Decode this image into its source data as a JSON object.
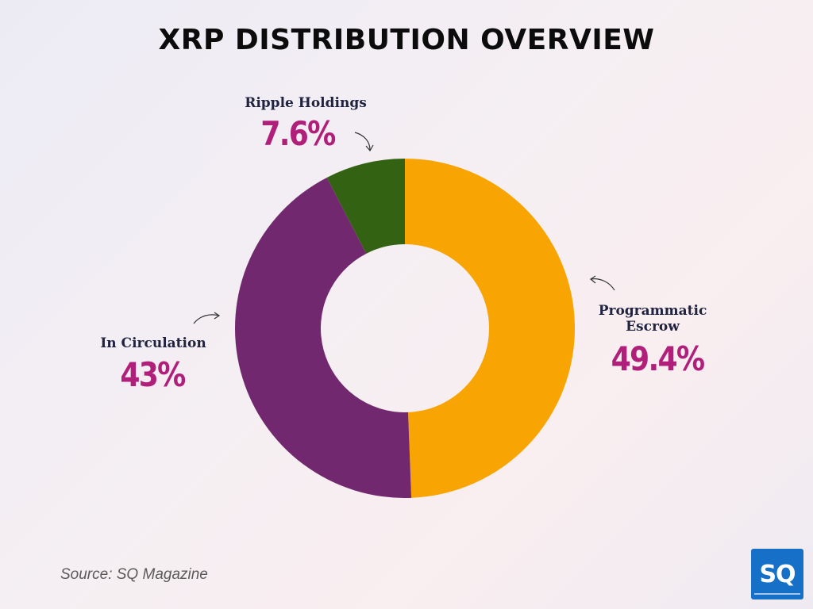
{
  "title": "XRP DISTRIBUTION OVERVIEW",
  "source": "Source: SQ Magazine",
  "logo_text": "SQ",
  "chart_data": {
    "type": "pie",
    "donut": true,
    "title": "XRP DISTRIBUTION OVERVIEW",
    "slices": [
      {
        "label": "Programmatic Escrow",
        "value": 49.4,
        "display": "49.4%",
        "color": "#f8a503"
      },
      {
        "label": "In Circulation",
        "value": 43,
        "display": "43%",
        "color": "#72286f"
      },
      {
        "label": "Ripple Holdings",
        "value": 7.6,
        "display": "7.6%",
        "color": "#336212"
      }
    ],
    "start": "top, clockwise",
    "legend": "none"
  }
}
